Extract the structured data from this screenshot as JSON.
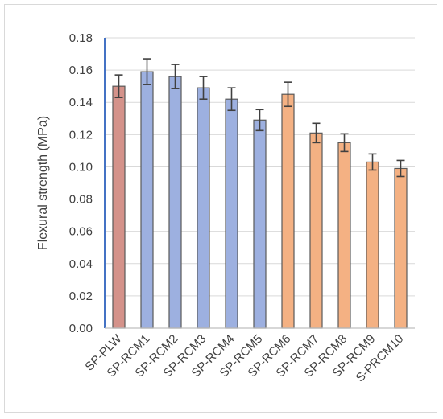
{
  "chart_data": {
    "type": "bar",
    "title": "",
    "xlabel": "",
    "ylabel": "Flexural  strength (MPa)",
    "ylim": [
      0,
      0.18
    ],
    "ytick_step": 0.02,
    "yticks": [
      "0.00",
      "0.02",
      "0.04",
      "0.06",
      "0.08",
      "0.10",
      "0.12",
      "0.14",
      "0.16",
      "0.18"
    ],
    "grid": true,
    "legend": "none",
    "categories": [
      "SP-PLW",
      "SP-RCM1",
      "SP-RCM2",
      "SP-RCM3",
      "SP-RCM4",
      "SP-RCM5",
      "SP-RCM6",
      "SP-RCM7",
      "SP-RCM8",
      "SP-RCM9",
      "S-PRCM10"
    ],
    "values": [
      0.15,
      0.159,
      0.156,
      0.149,
      0.142,
      0.129,
      0.145,
      0.121,
      0.115,
      0.103,
      0.099
    ],
    "errors": [
      0.007,
      0.008,
      0.0075,
      0.007,
      0.007,
      0.0065,
      0.0075,
      0.006,
      0.0055,
      0.005,
      0.005
    ],
    "bar_colors": [
      "#d4928a",
      "#9db0e0",
      "#9db0e0",
      "#9db0e0",
      "#9db0e0",
      "#9db0e0",
      "#f4b183",
      "#f4b183",
      "#f4b183",
      "#f4b183",
      "#f4b183"
    ],
    "bar_outline_color": "#595959",
    "axis_color": "#4472c4",
    "grid_color": "#d9d9d9"
  }
}
